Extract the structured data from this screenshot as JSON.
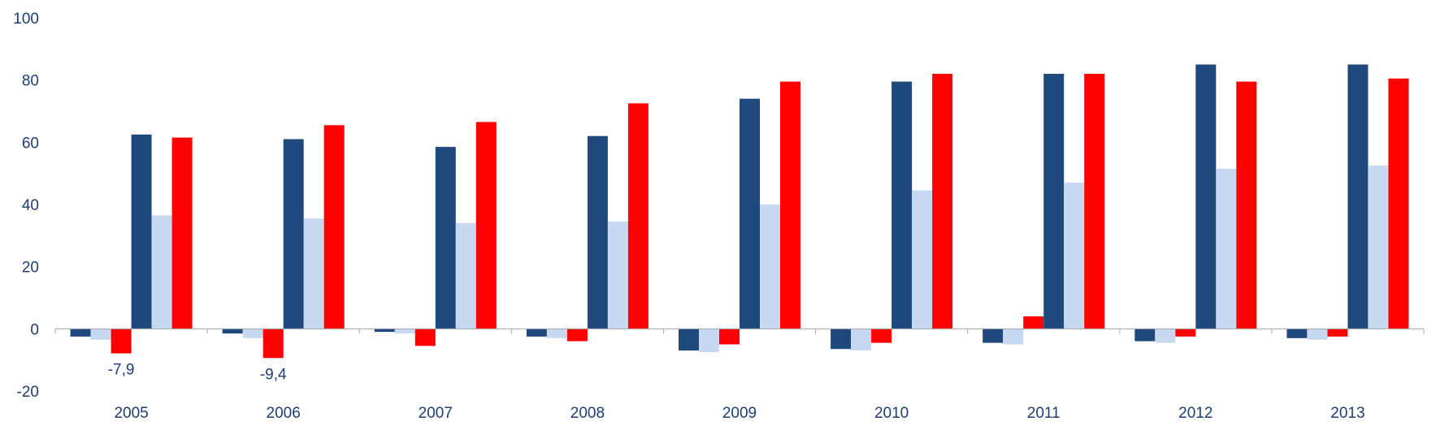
{
  "chart_data": {
    "type": "bar",
    "title": "",
    "xlabel": "",
    "ylabel": "",
    "ylim": [
      -20,
      100
    ],
    "yticks": [
      -20,
      0,
      20,
      40,
      60,
      80,
      100
    ],
    "grid": false,
    "categories": [
      "2005",
      "2006",
      "2007",
      "2008",
      "2009",
      "2010",
      "2011",
      "2012",
      "2013"
    ],
    "series": [
      {
        "color": "#1f497d",
        "values": [
          -2.5,
          -1.5,
          -1.0,
          -2.5,
          -7.0,
          -6.5,
          -4.5,
          -4.0,
          -3.0
        ]
      },
      {
        "color": "#c6d9f1",
        "values": [
          -3.5,
          -3.0,
          -1.5,
          -3.0,
          -7.5,
          -7.0,
          -5.0,
          -4.5,
          -3.5
        ]
      },
      {
        "color": "#ff0000",
        "values": [
          -7.9,
          -9.4,
          -5.5,
          -4.0,
          -5.0,
          -4.5,
          4.0,
          -2.5,
          -2.5
        ]
      },
      {
        "color": "#1f497d",
        "values": [
          62.5,
          61.0,
          58.5,
          62.0,
          74.0,
          79.5,
          82.0,
          85.0,
          85.0
        ]
      },
      {
        "color": "#c6d9f1",
        "values": [
          36.5,
          35.5,
          34.0,
          34.5,
          40.0,
          44.5,
          47.0,
          51.5,
          52.5
        ]
      },
      {
        "color": "#ff0000",
        "values": [
          61.5,
          65.5,
          66.5,
          72.5,
          79.5,
          82.0,
          82.0,
          79.5,
          80.5
        ]
      }
    ],
    "data_labels": [
      {
        "series": 2,
        "category": 0,
        "text": "-7,9"
      },
      {
        "series": 2,
        "category": 1,
        "text": "-9,4"
      }
    ]
  }
}
